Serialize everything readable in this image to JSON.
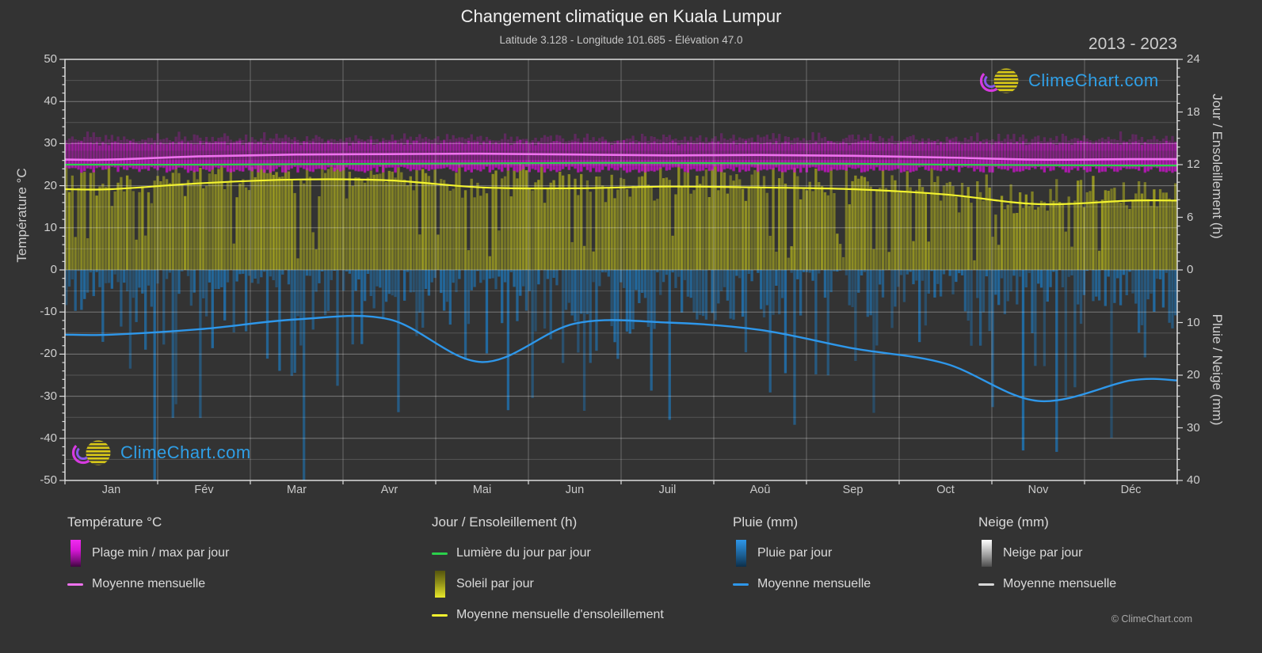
{
  "page": {
    "background": "#333333"
  },
  "header": {
    "title": "Changement climatique en Kuala Lumpur",
    "subtitle": "Latitude 3.128 - Longitude 101.685 - Élévation 47.0",
    "year_range": "2013 - 2023"
  },
  "watermark": {
    "text": "ClimeChart.com",
    "color": "#2f9fe6"
  },
  "copyright": "© ClimeChart.com",
  "axes": {
    "left_label": "Température °C",
    "right_top_label": "Jour / Ensoleillement (h)",
    "right_bottom_label": "Pluie / Neige (mm)",
    "temp_ticks": [
      50,
      40,
      30,
      20,
      10,
      0,
      -10,
      -20,
      -30,
      -40,
      -50
    ],
    "sun_ticks": [
      24,
      18,
      12,
      6,
      0
    ],
    "precip_ticks": [
      10,
      20,
      30,
      40
    ]
  },
  "chart_data": {
    "type": "line",
    "title": "Changement climatique en Kuala Lumpur",
    "subtitle": "Latitude 3.128 - Longitude 101.685 - Élévation 47.0",
    "period": "2013 - 2023",
    "categories": [
      "Jan",
      "Fév",
      "Mar",
      "Avr",
      "Mai",
      "Jun",
      "Juil",
      "Aoû",
      "Sep",
      "Oct",
      "Nov",
      "Déc"
    ],
    "axes": {
      "temp": {
        "label": "Température °C",
        "min": -50,
        "max": 50
      },
      "sun": {
        "label": "Jour / Ensoleillement (h)",
        "min": 0,
        "max": 24
      },
      "precip": {
        "label": "Pluie / Neige (mm)",
        "min": 0,
        "max": 40,
        "inverted": true
      }
    },
    "series": [
      {
        "name": "Température moyenne mensuelle",
        "axis": "temp",
        "unit": "°C",
        "color": "#ee72ee",
        "values": [
          26.2,
          27.0,
          27.4,
          27.5,
          27.6,
          27.4,
          27.2,
          27.3,
          27.1,
          26.7,
          26.2,
          26.3
        ]
      },
      {
        "name": "Lumière du jour par jour",
        "axis": "sun",
        "unit": "h",
        "color": "#2bd14b",
        "values": [
          12.0,
          12.0,
          12.05,
          12.1,
          12.15,
          12.2,
          12.2,
          12.15,
          12.1,
          12.0,
          11.95,
          11.9
        ]
      },
      {
        "name": "Moyenne mensuelle d'ensoleillement",
        "axis": "sun",
        "unit": "h",
        "color": "#f3f32f",
        "values": [
          9.2,
          9.9,
          10.3,
          10.2,
          9.4,
          9.3,
          9.5,
          9.4,
          9.2,
          8.6,
          7.5,
          7.9
        ]
      },
      {
        "name": "Pluie moyenne mensuelle",
        "axis": "precip",
        "unit": "mm",
        "color": "#2e97ea",
        "values": [
          12.3,
          11.2,
          9.4,
          9.4,
          17.5,
          10.2,
          10.0,
          11.4,
          14.9,
          17.8,
          24.9,
          21.0
        ]
      }
    ],
    "daily_bands": {
      "temp_minmax": {
        "name": "Plage min / max par jour",
        "color": "#cf13cf",
        "min_range_c": [
          23.0,
          24.7
        ],
        "max_range_c": [
          30.0,
          34.6
        ]
      },
      "sunshine": {
        "name": "Soleil par jour",
        "color": "#a8a81f",
        "range_h": [
          1.0,
          12.1
        ]
      },
      "rain": {
        "name": "Pluie par jour",
        "color": "#1f74b4",
        "range_mm": [
          0,
          46
        ]
      },
      "snow": {
        "name": "Neige par jour",
        "color": "#e0e0e0",
        "range_mm": [
          0,
          0
        ]
      }
    }
  },
  "legend": {
    "groups": [
      {
        "key": "temperature",
        "title": "Température °C",
        "items": [
          {
            "swatch": "g-magenta",
            "label": "Plage min / max par jour"
          },
          {
            "swatch": "l-magenta",
            "label": "Moyenne mensuelle"
          }
        ]
      },
      {
        "key": "daylight-sun",
        "title": "Jour / Ensoleillement (h)",
        "items": [
          {
            "swatch": "l-green",
            "label": "Lumière du jour par jour"
          },
          {
            "swatch": "g-yellow",
            "label": "Soleil par jour"
          },
          {
            "swatch": "l-yellow",
            "label": "Moyenne mensuelle d'ensoleillement"
          }
        ]
      },
      {
        "key": "rain",
        "title": "Pluie (mm)",
        "items": [
          {
            "swatch": "g-blue",
            "label": "Pluie par jour"
          },
          {
            "swatch": "l-blue",
            "label": "Moyenne mensuelle"
          }
        ]
      },
      {
        "key": "snow",
        "title": "Neige (mm)",
        "items": [
          {
            "swatch": "g-white",
            "label": "Neige par jour"
          },
          {
            "swatch": "l-gray",
            "label": "Moyenne mensuelle"
          }
        ]
      }
    ]
  }
}
